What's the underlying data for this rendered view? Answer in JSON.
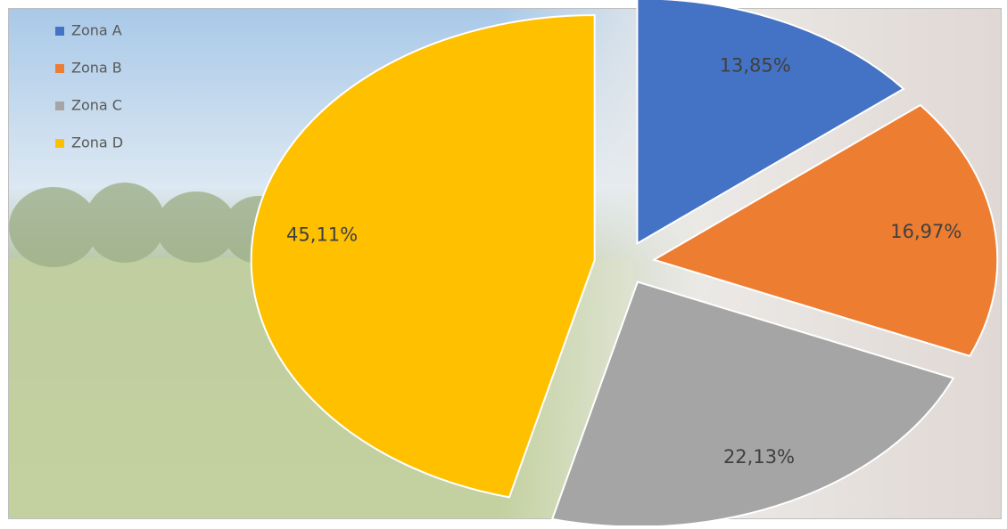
{
  "chart_data": {
    "type": "pie",
    "categories": [
      "Zona A",
      "Zona B",
      "Zona C",
      "Zona D"
    ],
    "values": [
      13.85,
      16.97,
      22.13,
      45.11
    ],
    "value_labels": [
      "13,85%",
      "16,97%",
      "22,13%",
      "45,11%"
    ],
    "colors": [
      "#4472c4",
      "#ed7d31",
      "#a5a5a5",
      "#ffc000"
    ],
    "legend": "top-left"
  }
}
